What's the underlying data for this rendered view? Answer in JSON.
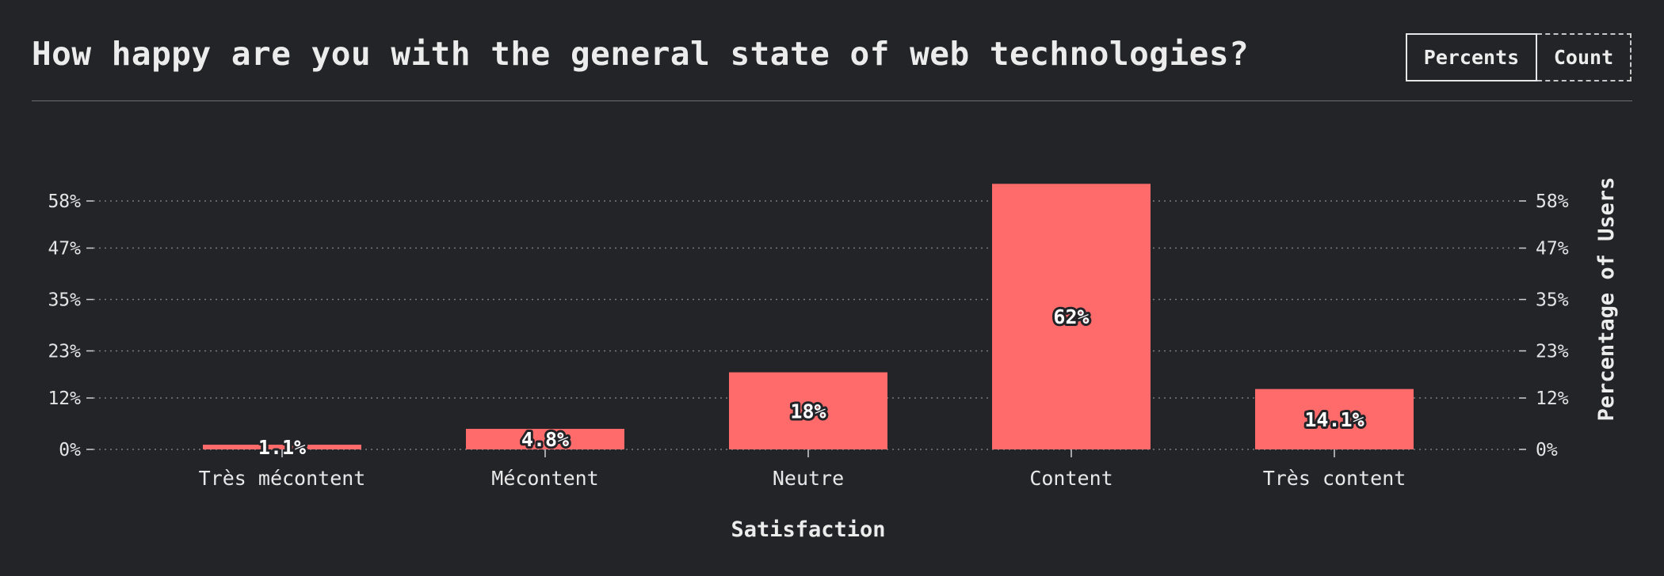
{
  "header": {
    "title": "How happy are you with the general state of web technologies?"
  },
  "toggle": {
    "percents_label": "Percents",
    "count_label": "Count",
    "selected": "Percents"
  },
  "colors": {
    "background": "#232428",
    "bar": "#ff6b6b",
    "gridline": "#7a7b80",
    "text": "#e8e8e8"
  },
  "chart_data": {
    "type": "bar",
    "categories": [
      "Très mécontent",
      "Mécontent",
      "Neutre",
      "Content",
      "Très content"
    ],
    "values": [
      1.1,
      4.8,
      18,
      62,
      14.1
    ],
    "value_labels": [
      "1.1%",
      "4.8%",
      "18%",
      "62%",
      "14.1%"
    ],
    "xlabel": "Satisfaction",
    "ylabel": "Percentage of Users",
    "yticks": [
      0,
      12,
      23,
      35,
      47,
      58
    ],
    "ytick_labels": [
      "0%",
      "12%",
      "23%",
      "35%",
      "47%",
      "58%"
    ],
    "ylim": [
      0,
      58
    ],
    "grid": true,
    "y_axis_sides": "left-and-right"
  }
}
